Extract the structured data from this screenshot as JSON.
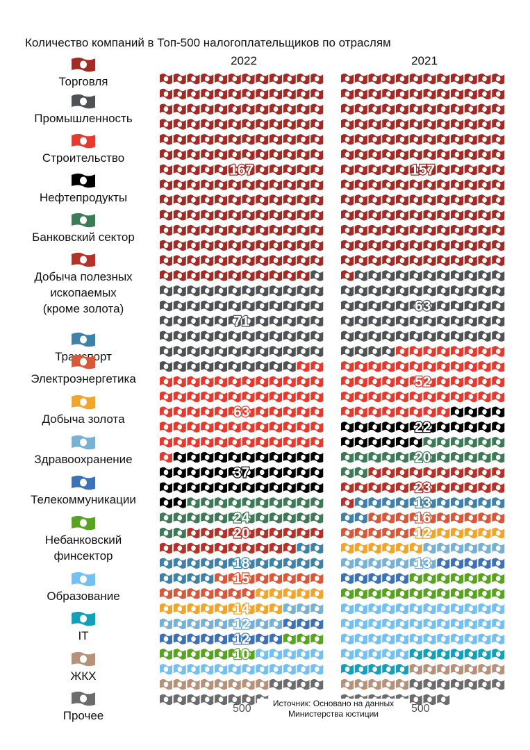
{
  "chart_data": {
    "type": "waffle",
    "title": "Количество компаний в Топ-500 налогоплательщиков по отраслям",
    "columns": [
      "2022",
      "2021"
    ],
    "totals": [
      "500",
      "500"
    ],
    "source": "Источник: Основано на данных Министерства юстиции",
    "categories": [
      {
        "name": "Торговля",
        "color": "#a12b25"
      },
      {
        "name": "Промышленность",
        "color": "#4f5155"
      },
      {
        "name": "Строительство",
        "color": "#e63a2e"
      },
      {
        "name": "Нефтепродукты",
        "color": "#000000"
      },
      {
        "name": "Банковский сектор",
        "color": "#3d7a56"
      },
      {
        "name": "Добыча полезных\nископаемых\n(кроме золота)",
        "color": "#b43228"
      },
      {
        "name": "Транспорт",
        "color": "#3f81a8"
      },
      {
        "name": "Электроэнергетика",
        "color": "#d8583a"
      },
      {
        "name": "Добыча золота",
        "color": "#f2a52b"
      },
      {
        "name": "Здравоохранение",
        "color": "#77b1d3"
      },
      {
        "name": "Телекоммуникации",
        "color": "#3d72b4"
      },
      {
        "name": "Небанковский\nфинсектор",
        "color": "#58a31f"
      },
      {
        "name": "Образование",
        "color": "#74c1f1"
      },
      {
        "name": "IT",
        "color": "#14a0ba"
      },
      {
        "name": "ЖКХ",
        "color": "#b7927a"
      },
      {
        "name": "Прочее",
        "color": "#6c6c6c"
      }
    ],
    "series": [
      {
        "name": "2022",
        "values": [
          167,
          71,
          63,
          37,
          24,
          20,
          18,
          15,
          14,
          12,
          12,
          10,
          17,
          0,
          8,
          12
        ]
      },
      {
        "name": "2021",
        "values": [
          157,
          63,
          52,
          22,
          20,
          23,
          13,
          16,
          12,
          13,
          10,
          19,
          41,
          12,
          12,
          15
        ]
      }
    ],
    "labels": [
      {
        "name": "2022",
        "values": [
          "167",
          "71",
          "63",
          "37",
          "24",
          "20",
          "18",
          "15",
          "14",
          "12",
          "12",
          "10",
          "",
          "",
          "",
          ""
        ]
      },
      {
        "name": "2021",
        "values": [
          "157",
          "63",
          "52",
          "22",
          "20",
          "23",
          "13",
          "16",
          "12",
          "13",
          "",
          "",
          "",
          "",
          "",
          ""
        ]
      }
    ]
  }
}
